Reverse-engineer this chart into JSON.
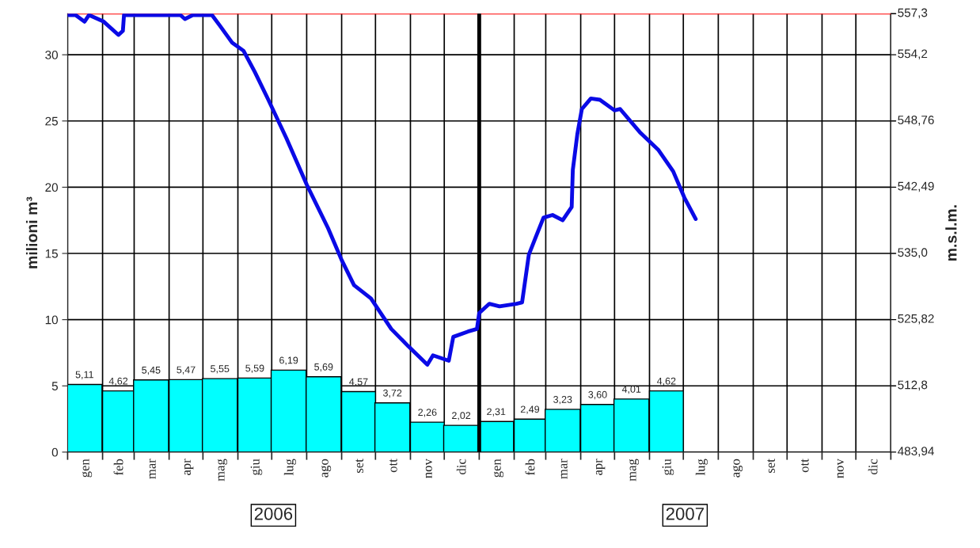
{
  "chart_data": {
    "type": "bar",
    "x": [
      "2006-01-16",
      "2006-02-15",
      "2006-03-16",
      "2006-04-16",
      "2006-05-16",
      "2006-06-16",
      "2006-07-16",
      "2006-08-16",
      "2006-09-16",
      "2006-10-16",
      "2006-11-16",
      "2006-12-16",
      "2007-01-16",
      "2007-02-15",
      "2007-03-16",
      "2007-04-16",
      "2007-05-16",
      "2007-06-16"
    ],
    "xlim": [
      "2006-01-01",
      "2008-01-01"
    ],
    "xticks": [
      {
        "value": "2006-01-16",
        "label": "gen"
      },
      {
        "value": "2006-02-15",
        "label": "feb"
      },
      {
        "value": "2006-03-16",
        "label": "mar"
      },
      {
        "value": "2006-04-16",
        "label": "apr"
      },
      {
        "value": "2006-05-16",
        "label": "mag"
      },
      {
        "value": "2006-06-16",
        "label": "giu"
      },
      {
        "value": "2006-07-16",
        "label": "lug"
      },
      {
        "value": "2006-08-16",
        "label": "ago"
      },
      {
        "value": "2006-09-16",
        "label": "set"
      },
      {
        "value": "2006-10-16",
        "label": "ott"
      },
      {
        "value": "2006-11-16",
        "label": "nov"
      },
      {
        "value": "2006-12-16",
        "label": "dic"
      },
      {
        "value": "2007-01-16",
        "label": "gen"
      },
      {
        "value": "2007-02-15",
        "label": "feb"
      },
      {
        "value": "2007-03-16",
        "label": "mar"
      },
      {
        "value": "2007-04-16",
        "label": "apr"
      },
      {
        "value": "2007-05-16",
        "label": "mag"
      },
      {
        "value": "2007-06-16",
        "label": "giu"
      },
      {
        "value": "2007-07-16",
        "label": "lug"
      },
      {
        "value": "2007-08-16",
        "label": "ago"
      },
      {
        "value": "2007-09-16",
        "label": "set"
      },
      {
        "value": "2007-10-16",
        "label": "ott"
      },
      {
        "value": "2007-11-16",
        "label": "nov"
      },
      {
        "value": "2007-12-16",
        "label": "dic"
      },
      {
        "value": "2006-01-01",
        "label": null
      },
      {
        "value": "2006-02-01",
        "label": null
      },
      {
        "value": "2006-03-01",
        "label": null
      },
      {
        "value": "2006-04-01",
        "label": null
      },
      {
        "value": "2006-05-01",
        "label": null
      },
      {
        "value": "2006-06-01",
        "label": null
      },
      {
        "value": "2006-07-01",
        "label": null
      },
      {
        "value": "2006-08-01",
        "label": null
      },
      {
        "value": "2006-09-01",
        "label": null
      },
      {
        "value": "2006-10-01",
        "label": null
      },
      {
        "value": "2006-11-01",
        "label": null
      },
      {
        "value": "2006-12-01",
        "label": null
      },
      {
        "value": "2007-01-01",
        "label": null
      },
      {
        "value": "2007-02-01",
        "label": null
      },
      {
        "value": "2007-03-01",
        "label": null
      },
      {
        "value": "2007-04-01",
        "label": null
      },
      {
        "value": "2007-05-01",
        "label": null
      },
      {
        "value": "2007-06-01",
        "label": null
      },
      {
        "value": "2007-07-01",
        "label": null
      },
      {
        "value": "2007-08-01",
        "label": null
      },
      {
        "value": "2007-09-01",
        "label": null
      },
      {
        "value": "2007-10-01",
        "label": null
      },
      {
        "value": "2007-11-01",
        "label": null
      },
      {
        "value": "2007-12-01",
        "label": null
      },
      {
        "value": "2008-01-01",
        "label": null
      }
    ],
    "ylabel": "milioni m³",
    "y2label": "m.s.l.m.",
    "ylim": [
      0,
      33.1
    ],
    "yticks": [
      0,
      5,
      10,
      15,
      20,
      25,
      30
    ],
    "grid": true,
    "legend": false,
    "series": [
      {
        "color": "#00ffff",
        "values": [
          5.11,
          4.62,
          5.45,
          5.47,
          5.55,
          5.59,
          6.19,
          5.69,
          4.57,
          3.72,
          2.26,
          2.02,
          2.31,
          2.49,
          3.23,
          3.6,
          4.01,
          4.62
        ],
        "value_labels": [
          "5,11",
          "4,62",
          "5,45",
          "5,47",
          "5,55",
          "5,59",
          "6,19",
          "5,69",
          "4,57",
          "3,72",
          "2,26",
          "2,02",
          "2,31",
          "2,49",
          "3,23",
          "3,60",
          "4,01",
          "4,62"
        ]
      },
      {
        "type": "line",
        "color": "#0a0ae6",
        "x": [
          "2006-01-02",
          "2006-01-08",
          "2006-01-16",
          "2006-01-20",
          "2006-02-02",
          "2006-02-15",
          "2006-02-19",
          "2006-02-20",
          "2006-02-25",
          "2006-04-11",
          "2006-04-15",
          "2006-04-22",
          "2006-05-09",
          "2006-05-16",
          "2006-05-27",
          "2006-06-06",
          "2006-06-16",
          "2006-06-28",
          "2006-07-14",
          "2006-08-01",
          "2006-08-20",
          "2006-09-01",
          "2006-09-12",
          "2006-09-27",
          "2006-10-15",
          "2006-10-30",
          "2006-11-16",
          "2006-11-21",
          "2006-12-05",
          "2006-12-09",
          "2006-12-22",
          "2006-12-30",
          "2007-01-01",
          "2007-01-10",
          "2007-01-19",
          "2007-02-03",
          "2007-02-08",
          "2007-02-14",
          "2007-02-20",
          "2007-02-27",
          "2007-03-07",
          "2007-03-16",
          "2007-03-24",
          "2007-03-25",
          "2007-03-29",
          "2007-04-02",
          "2007-04-10",
          "2007-04-18",
          "2007-05-01",
          "2007-05-06",
          "2007-05-24",
          "2007-06-09",
          "2007-06-22",
          "2007-07-02",
          "2007-07-12"
        ],
        "values": [
          33.0,
          33.0,
          32.5,
          33.0,
          32.5,
          31.5,
          31.8,
          33.0,
          33.0,
          33.0,
          32.7,
          33.0,
          33.0,
          32.2,
          30.9,
          30.3,
          28.7,
          26.6,
          23.7,
          20.2,
          16.9,
          14.5,
          12.6,
          11.6,
          9.3,
          8.0,
          6.6,
          7.3,
          6.9,
          8.7,
          9.1,
          9.3,
          10.5,
          11.2,
          11.0,
          11.2,
          11.3,
          14.9,
          16.2,
          17.7,
          17.9,
          17.5,
          18.5,
          21.3,
          24.0,
          25.9,
          26.7,
          26.6,
          25.8,
          25.9,
          24.1,
          22.8,
          21.2,
          19.2,
          17.6
        ]
      }
    ],
    "ref_lines": [
      {
        "axis": "y",
        "value": 33.1,
        "color": "#ff0000"
      },
      {
        "axis": "x",
        "value": "2007-01-01",
        "color": "#000000"
      }
    ],
    "annotations": [
      "2006",
      "2007",
      "483,94",
      "512,8",
      "525,82",
      "535,0",
      "542,49",
      "548,76",
      "554,2",
      "557,3"
    ]
  }
}
